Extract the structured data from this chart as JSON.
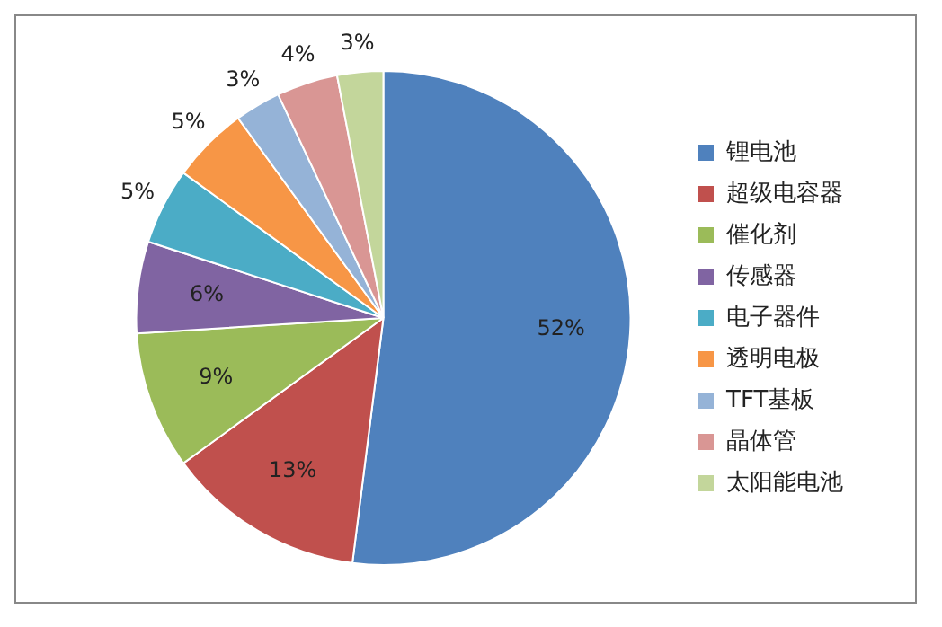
{
  "chart_data": {
    "type": "pie",
    "categories": [
      "锂电池",
      "超级电容器",
      "催化剂",
      "传感器",
      "电子器件",
      "透明电极",
      "TFT基板",
      "晶体管",
      "太阳能电池"
    ],
    "values": [
      52,
      13,
      9,
      6,
      5,
      5,
      3,
      4,
      3
    ],
    "colors": [
      "#4f81bd",
      "#c0504d",
      "#9bbb59",
      "#8064a2",
      "#4bacc6",
      "#f79646",
      "#95b3d7",
      "#d99694",
      "#c3d69b"
    ],
    "value_labels": [
      "52%",
      "13%",
      "9%",
      "6%",
      "5%",
      "5%",
      "3%",
      "4%",
      "3%"
    ],
    "legend": "right"
  }
}
